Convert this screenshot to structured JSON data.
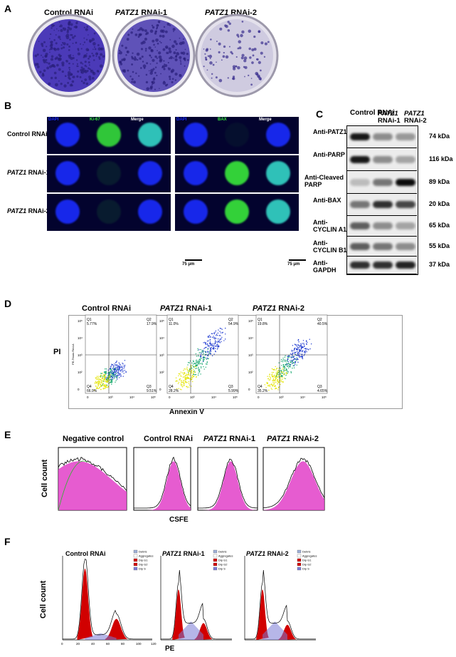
{
  "panel_letters": {
    "A": "A",
    "B": "B",
    "C": "C",
    "D": "D",
    "E": "E",
    "F": "F"
  },
  "panelA": {
    "titles": [
      {
        "gene": "",
        "rest": "Control RNAi"
      },
      {
        "gene": "PATZ1",
        "rest": " RNAi-1"
      },
      {
        "gene": "PATZ1",
        "rest": " RNAi-2"
      }
    ],
    "dish_density": [
      0.9,
      0.75,
      0.35
    ]
  },
  "panelB": {
    "row_labels": [
      {
        "gene": "",
        "rest": "Control RNAi"
      },
      {
        "gene": "PATZ1",
        "rest": " RNAi-1"
      },
      {
        "gene": "PATZ1",
        "rest": " RNAi-2"
      }
    ],
    "col_labels_left": [
      "DAPI",
      "Ki-67",
      "Merge"
    ],
    "col_labels_right": [
      "DAPI",
      "BAX",
      "Merge"
    ],
    "scale_bar": "75 μm",
    "colors": {
      "dapi": "#1a2cff",
      "green": "#39e83b",
      "cyan": "#34d6c7"
    }
  },
  "panelC": {
    "lanes": [
      {
        "gene": "",
        "rest": "Control RNAi"
      },
      {
        "gene": "PATZ1",
        "rest": "RNAi-1"
      },
      {
        "gene": "PATZ1",
        "rest": "RNAi-2"
      }
    ],
    "blots": [
      {
        "label": "Anti-PATZ1",
        "kda": "74 kDa"
      },
      {
        "label": "Anti-PARP",
        "kda": "116 kDa"
      },
      {
        "label": "Anti-Cleaved PARP",
        "kda": "89 kDa"
      },
      {
        "label": "Anti-BAX",
        "kda": "20 kDa"
      },
      {
        "label": "Anti-CYCLIN A1",
        "kda": "65 kDa"
      },
      {
        "label": "Anti-CYCLIN B1",
        "kda": "55 kDa"
      },
      {
        "label": "Anti-GAPDH",
        "kda": "37 kDa"
      }
    ]
  },
  "panelD": {
    "titles": [
      {
        "gene": "",
        "rest": "Control RNAi"
      },
      {
        "gene": "PATZ1",
        "rest": " RNAi-1"
      },
      {
        "gene": "PATZ1",
        "rest": " RNAi-2"
      }
    ],
    "ylabel": "PI",
    "xlabel": "Annexin V",
    "y_axis_small": "PE-Texas Red-A",
    "plots": [
      {
        "Q1": "Q1",
        "Q1v": "5.77%",
        "Q2": "Q2",
        "Q2v": "17.9%",
        "Q3": "Q3",
        "Q3v": "9.51%",
        "Q4": "Q4",
        "Q4v": "66.9%"
      },
      {
        "Q1": "Q1",
        "Q1v": "11.0%",
        "Q2": "Q2",
        "Q2v": "54.9%",
        "Q3": "Q3",
        "Q3v": "5.99%",
        "Q4": "Q4",
        "Q4v": "28.2%"
      },
      {
        "Q1": "Q1",
        "Q1v": "19.8%",
        "Q2": "Q2",
        "Q2v": "40.5%",
        "Q3": "Q3",
        "Q3v": "4.65%",
        "Q4": "Q4",
        "Q4v": "35.2%"
      }
    ],
    "ticks_y": [
      "10⁵",
      "10⁴",
      "10³",
      "10²",
      "0"
    ],
    "ticks_x": [
      "0",
      "10³",
      "10⁴",
      "10⁵"
    ]
  },
  "panelE": {
    "titles": [
      {
        "gene": "",
        "rest": "Negative control"
      },
      {
        "gene": "",
        "rest": "Control  RNAi"
      },
      {
        "gene": "PATZ1",
        "rest": " RNAi-1"
      },
      {
        "gene": "PATZ1",
        "rest": " RNAi-2"
      }
    ],
    "ylabel": "Cell count",
    "xlabel": "CSFE",
    "colors": {
      "fill": "#e23fc8",
      "outline": "#000000",
      "fit": "#2fb52f"
    }
  },
  "panelF": {
    "titles": [
      {
        "gene": "",
        "rest": "Control RNAi"
      },
      {
        "gene": "PATZ1",
        "rest": " RNAi-1"
      },
      {
        "gene": "PATZ1",
        "rest": " RNAi-2"
      }
    ],
    "ylabel": "Cell count",
    "xlabel": "PE",
    "legend": [
      "Debris",
      "Aggregates",
      "Dip G1",
      "Dip G2",
      "Dip S"
    ],
    "xticks": [
      "0",
      "20",
      "40",
      "60",
      "80",
      "100",
      "120"
    ],
    "colors": {
      "g1": "#d10000",
      "s": "#7a7ad6",
      "debris": "#9fb0d8"
    }
  }
}
